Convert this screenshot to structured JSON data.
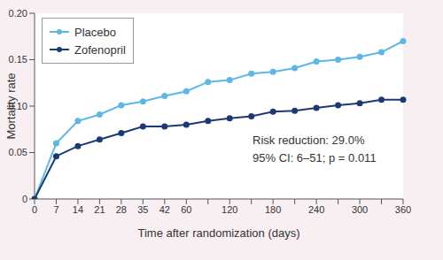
{
  "chart_data": {
    "type": "line",
    "xlabel": "Time after randomization (days)",
    "ylabel": "Mortality rate",
    "categories": [
      "0",
      "7",
      "14",
      "21",
      "28",
      "35",
      "42",
      "60",
      null,
      "120",
      null,
      "180",
      null,
      "240",
      null,
      "300",
      null,
      "360"
    ],
    "series": [
      {
        "name": "Placebo",
        "color": "#5db7e6",
        "marker": "circle",
        "values": [
          0,
          0.06,
          0.084,
          0.091,
          0.101,
          0.105,
          0.111,
          0.116,
          0.126,
          0.128,
          0.135,
          0.137,
          0.141,
          0.148,
          0.15,
          0.153,
          0.158,
          0.17
        ]
      },
      {
        "name": "Zofenopril",
        "color": "#1b3a73",
        "marker": "circle",
        "values": [
          0,
          0.046,
          0.057,
          0.064,
          0.071,
          0.078,
          0.078,
          0.08,
          0.084,
          0.087,
          0.089,
          0.094,
          0.095,
          0.098,
          0.101,
          0.103,
          0.107,
          0.107
        ]
      }
    ],
    "ylim": [
      0,
      0.2
    ],
    "yticks": [
      0,
      0.05,
      {
        "value": 0.1,
        "label": "0.10"
      },
      0.15,
      {
        "value": 0.2,
        "label": "0.20"
      }
    ],
    "grid": false,
    "legend": "upper left",
    "annotations": [
      "Risk reduction: 29.0%",
      "95% CI: 6–51; p = 0.011"
    ]
  }
}
